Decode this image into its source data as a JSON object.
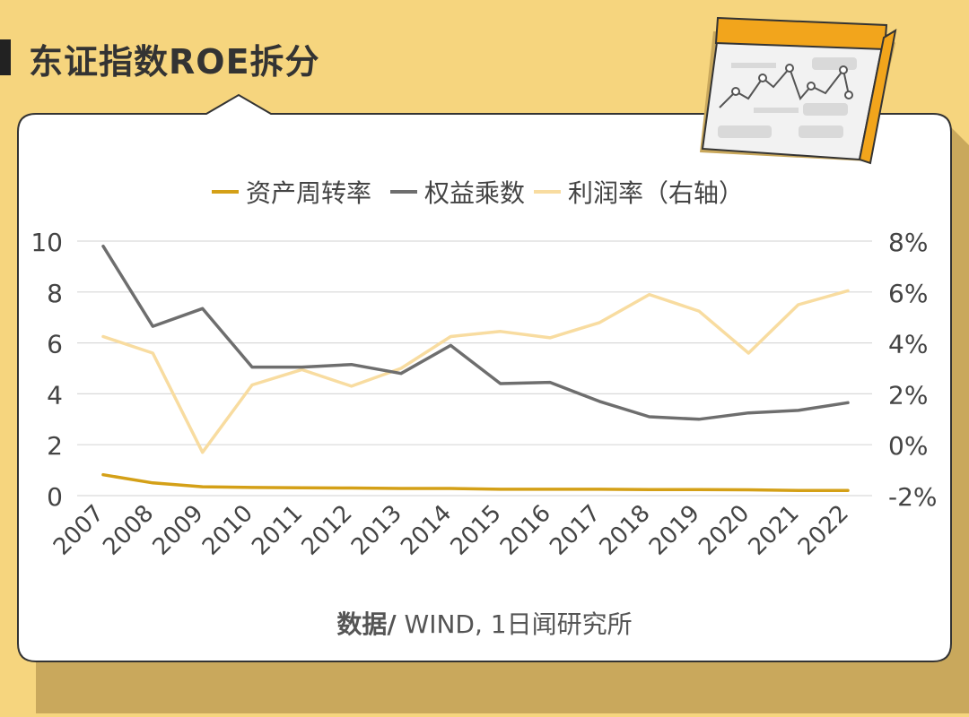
{
  "title": "东证指数ROE拆分",
  "source": {
    "label": "数据/",
    "text": " WIND, 1日闻研究所"
  },
  "colors": {
    "background": "#f6d57e",
    "shadow": "#c9a85c",
    "panel": "#ffffff",
    "grid": "#d9d9d9",
    "asset_turnover": "#d4a017",
    "equity_multiplier": "#6e6e6e",
    "profit_margin": "#f8dca0",
    "text": "#444444"
  },
  "icon": "chart-calendar-icon",
  "chart_data": {
    "type": "line",
    "categories": [
      "2007",
      "2008",
      "2009",
      "2010",
      "2011",
      "2012",
      "2013",
      "2014",
      "2015",
      "2016",
      "2017",
      "2018",
      "2019",
      "2020",
      "2021",
      "2022"
    ],
    "legend_position": "top-center",
    "grid": true,
    "y_left": {
      "ticks": [
        "0",
        "2",
        "4",
        "6",
        "8",
        "10"
      ],
      "range": [
        0,
        10
      ]
    },
    "y_right": {
      "ticks": [
        "-2%",
        "0%",
        "2%",
        "4%",
        "6%",
        "8%"
      ],
      "range": [
        -2,
        8
      ]
    },
    "series": [
      {
        "name": "资产周转率",
        "axis": "left",
        "values": [
          0.82,
          0.5,
          0.35,
          0.32,
          0.31,
          0.3,
          0.28,
          0.28,
          0.25,
          0.25,
          0.25,
          0.24,
          0.24,
          0.23,
          0.2,
          0.2
        ]
      },
      {
        "name": "权益乘数",
        "axis": "left",
        "values": [
          9.8,
          6.65,
          7.35,
          5.05,
          5.05,
          5.15,
          4.8,
          5.9,
          4.4,
          4.45,
          3.7,
          3.1,
          3.0,
          3.25,
          3.35,
          3.65
        ]
      },
      {
        "name": "利润率（右轴）",
        "axis": "right",
        "values": [
          4.25,
          3.6,
          -0.3,
          2.35,
          2.95,
          2.3,
          3.0,
          4.25,
          4.45,
          4.2,
          4.8,
          5.9,
          5.25,
          3.6,
          5.5,
          6.05
        ]
      }
    ]
  }
}
